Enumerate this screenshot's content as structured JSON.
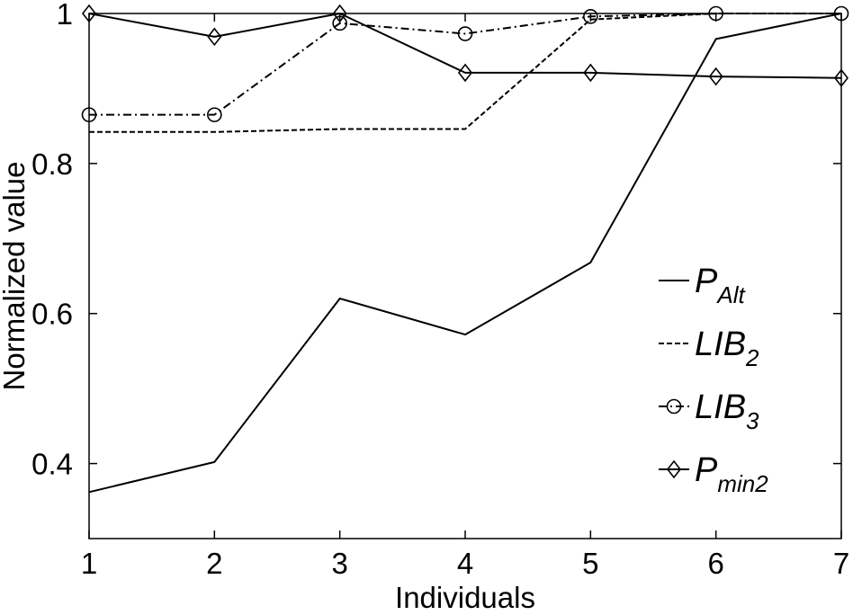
{
  "chart_data": {
    "type": "line",
    "xlabel": "Individuals",
    "ylabel": "Normalized value",
    "xlim": [
      1,
      7
    ],
    "ylim": [
      0.3,
      1.0
    ],
    "x": [
      1,
      2,
      3,
      4,
      5,
      6,
      7
    ],
    "x_ticks": [
      "1",
      "2",
      "3",
      "4",
      "5",
      "6",
      "7"
    ],
    "y_ticks": [
      {
        "value": 0.4,
        "label": "0.4"
      },
      {
        "value": 0.6,
        "label": "0.6"
      },
      {
        "value": 0.8,
        "label": "0.8"
      },
      {
        "value": 1.0,
        "label": "1"
      }
    ],
    "grid": false,
    "legend_position": "right",
    "series": [
      {
        "name_main": "P",
        "name_sub": "Alt",
        "line_style": "solid",
        "marker": "none",
        "values": [
          0.362,
          0.402,
          0.62,
          0.572,
          0.668,
          0.966,
          1.0
        ]
      },
      {
        "name_main": "LIB",
        "name_sub": "2",
        "line_style": "dashed",
        "marker": "none",
        "values": [
          0.842,
          0.842,
          0.846,
          0.846,
          0.992,
          1.0,
          1.0
        ]
      },
      {
        "name_main": "LIB",
        "name_sub": "3",
        "line_style": "dashdot",
        "marker": "circle",
        "values": [
          0.865,
          0.865,
          0.987,
          0.973,
          0.996,
          1.0,
          1.0
        ]
      },
      {
        "name_main": "P",
        "name_sub": "min2",
        "line_style": "solid",
        "marker": "diamond",
        "values": [
          1.0,
          0.969,
          1.0,
          0.921,
          0.921,
          0.916,
          0.914
        ]
      }
    ],
    "colors": {
      "line": "#000000",
      "background": "#ffffff"
    }
  }
}
